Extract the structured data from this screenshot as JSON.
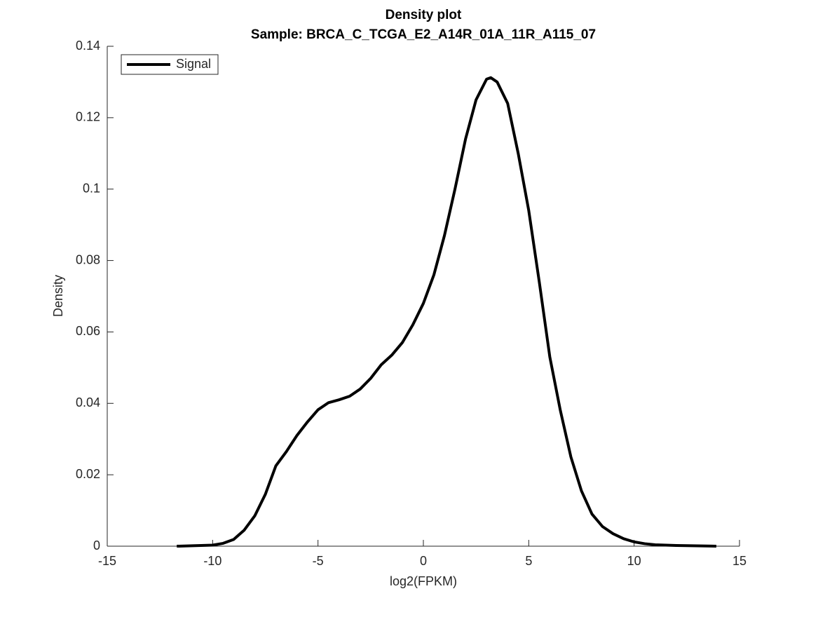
{
  "chart_data": {
    "type": "line",
    "title": "Density plot",
    "subtitle": "Sample: BRCA_C_TCGA_E2_A14R_01A_11R_A115_07",
    "x_label": "log2(FPKM)",
    "y_label": "Density",
    "x": [
      -11.7,
      -10,
      -9.5,
      -9,
      -8.5,
      -8,
      -7.5,
      -7,
      -6.5,
      -6,
      -5.5,
      -5,
      -4.5,
      -4,
      -3.5,
      -3,
      -2.5,
      -2,
      -1.5,
      -1,
      -0.5,
      0,
      0.5,
      1,
      1.5,
      2,
      2.5,
      3,
      3.2,
      3.5,
      4,
      4.5,
      5,
      5.5,
      6,
      6.5,
      7,
      7.5,
      8,
      8.5,
      9,
      9.5,
      10,
      10.5,
      11,
      12,
      13,
      13.9
    ],
    "series": [
      {
        "name": "Signal",
        "color": "#000000",
        "values": [
          0,
          0.0003,
          0.0008,
          0.0019,
          0.0045,
          0.0085,
          0.0145,
          0.0225,
          0.0265,
          0.031,
          0.0348,
          0.0382,
          0.0402,
          0.041,
          0.042,
          0.044,
          0.047,
          0.0508,
          0.0535,
          0.057,
          0.062,
          0.068,
          0.076,
          0.087,
          0.1,
          0.114,
          0.125,
          0.1308,
          0.1312,
          0.13,
          0.124,
          0.11,
          0.094,
          0.074,
          0.053,
          0.038,
          0.025,
          0.0155,
          0.009,
          0.0055,
          0.0035,
          0.0021,
          0.0012,
          0.0007,
          0.0004,
          0.0002,
          0.0001,
          0
        ]
      }
    ],
    "xlim": [
      -15,
      15
    ],
    "ylim": [
      0,
      0.14
    ],
    "xticks": [
      -15,
      -10,
      -5,
      0,
      5,
      10,
      15
    ],
    "yticks": [
      0,
      0.02,
      0.04,
      0.06,
      0.08,
      0.1,
      0.12,
      0.14
    ],
    "legend": "upper left",
    "grid": false
  }
}
